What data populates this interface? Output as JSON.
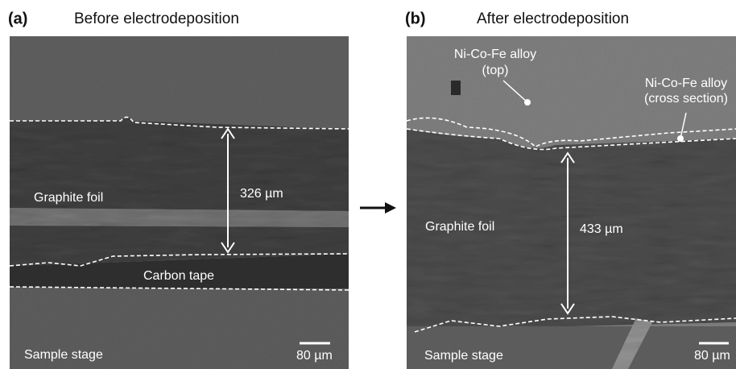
{
  "panels": [
    {
      "label": "(a)",
      "title": "Before electrodeposition",
      "foil": "Graphite foil",
      "thickness": "326 µm",
      "tape": "Carbon tape",
      "stage": "Sample stage",
      "scale_bar": "80 µm"
    },
    {
      "label": "(b)",
      "title": "After electrodeposition",
      "alloy_top": [
        "Ni-Co-Fe alloy",
        "(top)"
      ],
      "alloy_cross": [
        "Ni-Co-Fe alloy",
        "(cross section)"
      ],
      "foil": "Graphite foil",
      "thickness": "433 µm",
      "stage": "Sample stage",
      "scale_bar": "80 µm"
    }
  ]
}
